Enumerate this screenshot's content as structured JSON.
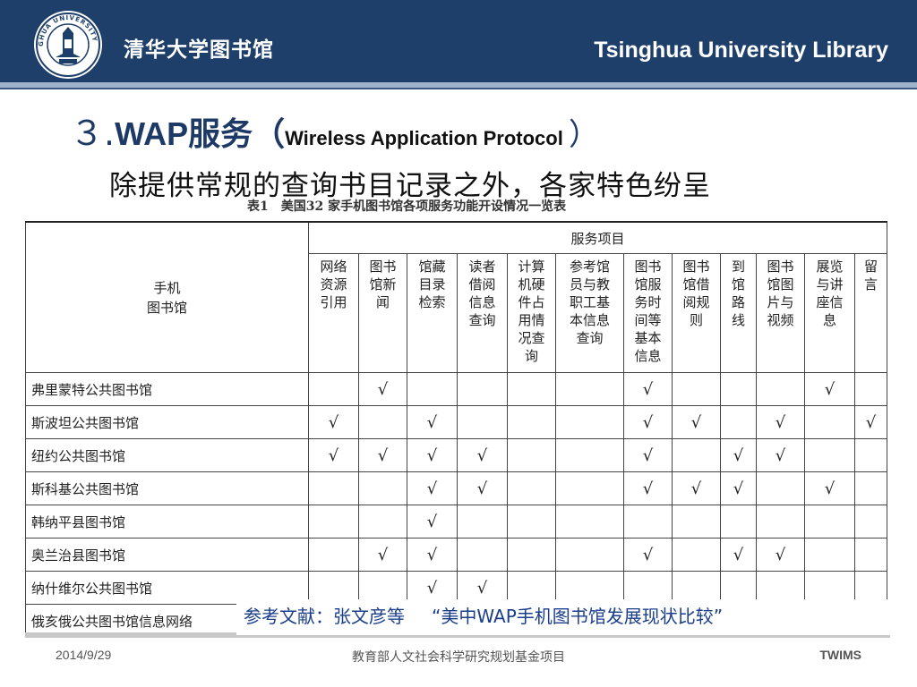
{
  "header": {
    "cn_name": "清华大学图书馆",
    "en_name": "Tsinghua University Library",
    "logo": "tsinghua-seal-icon",
    "logo_text": "TSINGHUA UNIVERSITY 1911",
    "colors": {
      "band": "#1f3f6b",
      "rule": "#9fb3cc"
    }
  },
  "slide": {
    "title_num": "３.",
    "title_main": "WAP服务（",
    "title_sub": "Wireless Application Protocol ",
    "title_close": "）",
    "subtitle": "除提供常规的查询书目记录之外，各家特色纷呈"
  },
  "table": {
    "caption": "表1　美国32 家手机图书馆各项服务功能开设情况一览表",
    "corner": [
      "手机",
      "图书馆"
    ],
    "group_header": "服务项目",
    "columns": [
      [
        "网络",
        "资源",
        "引用"
      ],
      [
        "图书",
        "馆新",
        "闻"
      ],
      [
        "馆藏",
        "目录",
        "检索"
      ],
      [
        "读者",
        "借阅",
        "信息",
        "查询"
      ],
      [
        "计算",
        "机硬",
        "件占",
        "用情",
        "况查",
        "询"
      ],
      [
        "参考馆",
        "员与教",
        "职工基",
        "本信息",
        "查询"
      ],
      [
        "图书",
        "馆服",
        "务时",
        "间等",
        "基本",
        "信息"
      ],
      [
        "图书",
        "馆借",
        "阅规",
        "则"
      ],
      [
        "到",
        "馆",
        "路",
        "线"
      ],
      [
        "图书",
        "馆图",
        "片与",
        "视频"
      ],
      [
        "展览",
        "与讲",
        "座信",
        "息"
      ],
      [
        "留",
        "言"
      ]
    ],
    "check_symbol": "√",
    "rows": [
      {
        "name": "弗里蒙特公共图书馆",
        "checks": [
          false,
          true,
          false,
          false,
          false,
          false,
          true,
          false,
          false,
          false,
          true,
          false
        ]
      },
      {
        "name": "斯波坦公共图书馆",
        "checks": [
          true,
          false,
          true,
          false,
          false,
          false,
          true,
          true,
          false,
          true,
          false,
          true
        ]
      },
      {
        "name": "纽约公共图书馆",
        "checks": [
          true,
          true,
          true,
          true,
          false,
          false,
          true,
          false,
          true,
          true,
          false,
          false
        ]
      },
      {
        "name": "斯科基公共图书馆",
        "checks": [
          false,
          false,
          true,
          true,
          false,
          false,
          true,
          true,
          true,
          false,
          true,
          false
        ]
      },
      {
        "name": "韩纳平县图书馆",
        "checks": [
          false,
          false,
          true,
          false,
          false,
          false,
          false,
          false,
          false,
          false,
          false,
          false
        ]
      },
      {
        "name": "奥兰治县图书馆",
        "checks": [
          false,
          true,
          true,
          false,
          false,
          false,
          true,
          false,
          true,
          true,
          false,
          false
        ]
      },
      {
        "name": "纳什维尔公共图书馆",
        "checks": [
          false,
          false,
          true,
          true,
          false,
          false,
          false,
          false,
          false,
          false,
          false,
          false
        ]
      },
      {
        "name": "俄亥俄公共图书馆信息网络",
        "checks": [
          false,
          false,
          false,
          false,
          false,
          false,
          false,
          false,
          false,
          false,
          false,
          false
        ]
      }
    ]
  },
  "reference": {
    "prefix": "参考文献：张文彦等",
    "work": "“美中WAP手机图书馆发展现状比较”"
  },
  "footer": {
    "date": "2014/9/29",
    "project": "教育部人文社会科学研究规划基金项目",
    "brand": "TWIMS"
  }
}
